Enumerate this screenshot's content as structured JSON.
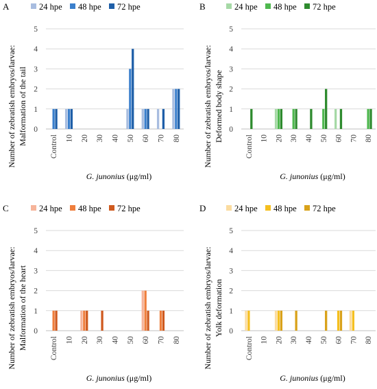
{
  "chart_data": [
    {
      "panel": "A",
      "type": "bar",
      "categories": [
        "Control",
        "10",
        "20",
        "30",
        "40",
        "50",
        "60",
        "70",
        "80"
      ],
      "series": [
        {
          "name": "24 hpe",
          "values": [
            0,
            1,
            0,
            0,
            0,
            1,
            1,
            1,
            2
          ],
          "color": "#a8bde0"
        },
        {
          "name": "48 hpe",
          "values": [
            1,
            1,
            0,
            0,
            0,
            3,
            1,
            0,
            2
          ],
          "color": "#3a7fcc"
        },
        {
          "name": "72 hpe",
          "values": [
            1,
            1,
            0,
            0,
            0,
            4,
            1,
            1,
            2
          ],
          "color": "#1f5fa8"
        }
      ],
      "ylabel_lines": [
        "Number of zebratish embryos/larvae:",
        "Malformation of the tail"
      ],
      "xlabel_species": "G. junonius",
      "xlabel_unit": " (μg/ml)",
      "ylim": [
        0,
        5
      ],
      "yticks": [
        "0",
        "1",
        "2",
        "3",
        "4",
        "5"
      ],
      "grid": true,
      "legend_position": "top"
    },
    {
      "panel": "B",
      "type": "bar",
      "categories": [
        "Control",
        "10",
        "20",
        "30",
        "40",
        "50",
        "60",
        "70",
        "80"
      ],
      "series": [
        {
          "name": "24 hpe",
          "values": [
            0,
            0,
            1,
            0,
            0,
            0,
            1,
            0,
            0
          ],
          "color": "#a6d9a6"
        },
        {
          "name": "48 hpe",
          "values": [
            0,
            0,
            1,
            1,
            0,
            1,
            0,
            0,
            1
          ],
          "color": "#4fb84f"
        },
        {
          "name": "72 hpe",
          "values": [
            1,
            0,
            1,
            1,
            1,
            2,
            1,
            0,
            1
          ],
          "color": "#2e8b2e"
        }
      ],
      "ylabel_lines": [
        "Number of zebratish embryos/larvae:",
        "Deformed body shape"
      ],
      "xlabel_species": "G. junonius",
      "xlabel_unit": " (μg/ml)",
      "ylim": [
        0,
        5
      ],
      "yticks": [
        "0",
        "1",
        "2",
        "3",
        "4",
        "5"
      ],
      "grid": true,
      "legend_position": "top"
    },
    {
      "panel": "C",
      "type": "bar",
      "categories": [
        "Control",
        "10",
        "20",
        "30",
        "40",
        "50",
        "60",
        "70",
        "80"
      ],
      "series": [
        {
          "name": "24 hpe",
          "values": [
            0,
            0,
            1,
            0,
            0,
            0,
            2,
            0,
            0
          ],
          "color": "#f6b49a"
        },
        {
          "name": "48 hpe",
          "values": [
            1,
            0,
            1,
            0,
            0,
            0,
            2,
            1,
            0
          ],
          "color": "#ef7e3c"
        },
        {
          "name": "72 hpe",
          "values": [
            1,
            0,
            1,
            1,
            0,
            0,
            1,
            1,
            0
          ],
          "color": "#cf5a1f"
        }
      ],
      "ylabel_lines": [
        "Number of zebratish embryos/larvae:",
        "Malformation of the heart"
      ],
      "xlabel_species": "G. junonius",
      "xlabel_unit": " (μg/ml)",
      "ylim": [
        0,
        5
      ],
      "yticks": [
        "0",
        "1",
        "2",
        "3",
        "4",
        "5"
      ],
      "grid": true,
      "legend_position": "top"
    },
    {
      "panel": "D",
      "type": "bar",
      "categories": [
        "Control",
        "10",
        "20",
        "30",
        "40",
        "50",
        "60",
        "70",
        "80"
      ],
      "series": [
        {
          "name": "24 hpe",
          "values": [
            1,
            0,
            1,
            0,
            0,
            0,
            0,
            1,
            0
          ],
          "color": "#fbdca0"
        },
        {
          "name": "48 hpe",
          "values": [
            1,
            0,
            1,
            0,
            0,
            0,
            1,
            1,
            0
          ],
          "color": "#f5bf1f"
        },
        {
          "name": "72 hpe",
          "values": [
            0,
            0,
            1,
            1,
            0,
            1,
            1,
            0,
            0
          ],
          "color": "#d9a21a"
        }
      ],
      "ylabel_lines": [
        "Number of zebratish embryos/larvae:",
        "Yolk deformation"
      ],
      "xlabel_species": "G. junonius",
      "xlabel_unit": " (μg/ml)",
      "ylim": [
        0,
        5
      ],
      "yticks": [
        "0",
        "1",
        "2",
        "3",
        "4",
        "5"
      ],
      "grid": true,
      "legend_position": "top"
    }
  ]
}
